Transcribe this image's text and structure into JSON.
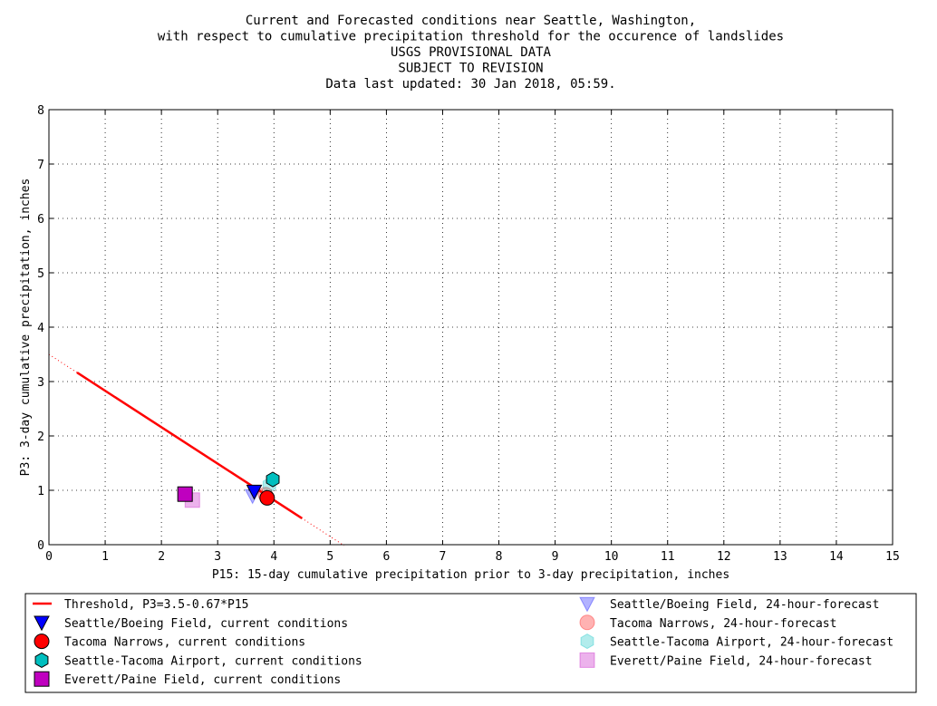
{
  "chart_data": {
    "type": "scatter",
    "title_lines": [
      "Current and Forecasted conditions near Seattle, Washington,",
      "with respect to cumulative precipitation threshold for the occurence of landslides",
      "USGS PROVISIONAL DATA",
      "SUBJECT TO REVISION",
      "Data last updated: 30 Jan 2018, 05:59."
    ],
    "xlabel": "P15: 15-day cumulative precipitation prior to 3-day precipitation, inches",
    "ylabel": "P3: 3-day cumulative precipitation, inches",
    "xlim": [
      0,
      15
    ],
    "ylim": [
      0,
      8
    ],
    "x_ticks": [
      "0",
      "1",
      "2",
      "3",
      "4",
      "5",
      "6",
      "7",
      "8",
      "9",
      "10",
      "11",
      "12",
      "13",
      "14",
      "15"
    ],
    "y_ticks": [
      "0",
      "1",
      "2",
      "3",
      "4",
      "5",
      "6",
      "7",
      "8"
    ],
    "grid": true,
    "legend_position": "bottom",
    "threshold": {
      "name": "Threshold, P3=3.5-0.67*P15",
      "intercept": 3.5,
      "slope": -0.67,
      "solid_x": [
        0.5,
        4.5
      ],
      "dotted_x": [
        0,
        5.25
      ],
      "color": "#ff0000"
    },
    "series": [
      {
        "name": "Seattle/Boeing Field, current conditions",
        "marker": "triangle-down",
        "color": "#0000ff",
        "alpha": 1.0,
        "x": 3.65,
        "y": 0.98
      },
      {
        "name": "Tacoma Narrows, current conditions",
        "marker": "circle",
        "color": "#ff0000",
        "alpha": 1.0,
        "x": 3.88,
        "y": 0.86
      },
      {
        "name": "Seattle-Tacoma Airport, current conditions",
        "marker": "hexagon",
        "color": "#00bfbf",
        "alpha": 1.0,
        "x": 3.98,
        "y": 1.2
      },
      {
        "name": "Everett/Paine Field, current conditions",
        "marker": "square",
        "color": "#bf00bf",
        "alpha": 1.0,
        "x": 2.42,
        "y": 0.93
      },
      {
        "name": "Seattle/Boeing Field, 24-hour-forecast",
        "marker": "triangle-down",
        "color": "#0000ff",
        "alpha": 0.3,
        "x": 3.62,
        "y": 0.9
      },
      {
        "name": "Tacoma Narrows, 24-hour-forecast",
        "marker": "circle",
        "color": "#ff0000",
        "alpha": 0.3,
        "x": 3.85,
        "y": 0.92
      },
      {
        "name": "Seattle-Tacoma Airport, 24-hour-forecast",
        "marker": "hexagon",
        "color": "#00bfbf",
        "alpha": 0.3,
        "x": 3.92,
        "y": 1.1
      },
      {
        "name": "Everett/Paine Field, 24-hour-forecast",
        "marker": "square",
        "color": "#bf00bf",
        "alpha": 0.3,
        "x": 2.55,
        "y": 0.82
      }
    ]
  }
}
